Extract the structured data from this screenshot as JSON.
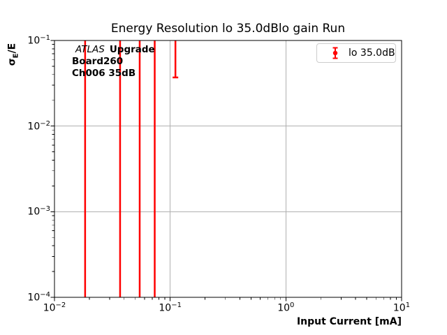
{
  "figure": {
    "background": "#ffffff"
  },
  "chart_data": {
    "type": "scatter",
    "plot_style": "errorbar",
    "title": "Energy Resolution lo 35.0dBlo gain Run",
    "xlabel": "Input Current [mA]",
    "ylabel": "σ_E/E",
    "ylabel_parts": {
      "sigma": "σ",
      "sub": "E",
      "rest": "/E"
    },
    "xscale": "log",
    "yscale": "log",
    "xlim": [
      0.01,
      10
    ],
    "ylim": [
      0.0001,
      0.1
    ],
    "x_tick_exponents": [
      -2,
      -1,
      0,
      1
    ],
    "y_tick_exponents": [
      -1,
      -2,
      -3,
      -4
    ],
    "grid": true,
    "legend_position": "upper right",
    "series": [
      {
        "name": "lo 35.0dB",
        "color": "#ff0000",
        "error_bars": [
          {
            "x": 0.0184,
            "bar_top": 0.1,
            "bar_bottom": 0.0001,
            "clipped_top": true,
            "clipped_bottom": true
          },
          {
            "x": 0.0369,
            "bar_top": 0.1,
            "bar_bottom": 0.0001,
            "clipped_top": true,
            "clipped_bottom": true
          },
          {
            "x": 0.0545,
            "bar_top": 0.1,
            "bar_bottom": 0.0001,
            "clipped_top": true,
            "clipped_bottom": true
          },
          {
            "x": 0.0735,
            "bar_top": 0.1,
            "bar_bottom": 0.0001,
            "clipped_top": true,
            "clipped_bottom": true
          },
          {
            "x": 0.111,
            "bar_top": 0.1,
            "bar_bottom": 0.037,
            "clipped_top": true,
            "clipped_bottom": false
          }
        ]
      }
    ]
  },
  "annotation": {
    "experiment": "ATLAS",
    "program": "Upgrade",
    "line2": "Board260",
    "line3": "Ch006 35dB"
  },
  "legend": {
    "label": "lo 35.0dB"
  },
  "colors": {
    "series": "#ff0000",
    "grid": "#b0b0b0",
    "spine": "#000000",
    "legend_border": "#cccccc"
  }
}
